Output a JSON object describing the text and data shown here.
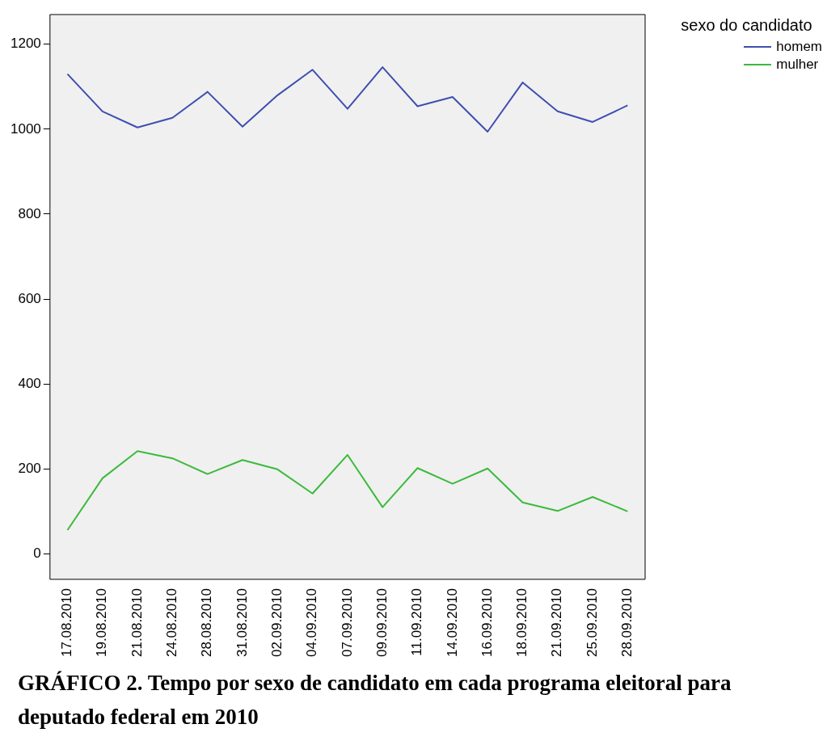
{
  "chart_data": {
    "type": "line",
    "categories": [
      "17.08.2010",
      "19.08.2010",
      "21.08.2010",
      "24.08.2010",
      "28.08.2010",
      "31.08.2010",
      "02.09.2010",
      "04.09.2010",
      "07.09.2010",
      "09.09.2010",
      "11.09.2010",
      "14.09.2010",
      "16.09.2010",
      "18.09.2010",
      "21.09.2010",
      "25.09.2010",
      "28.09.2010"
    ],
    "series": [
      {
        "name": "homem",
        "color": "#3e4fb0",
        "values": [
          1130,
          1042,
          1004,
          1027,
          1088,
          1006,
          1080,
          1140,
          1048,
          1146,
          1054,
          1076,
          994,
          1110,
          1042,
          1017,
          1056
        ]
      },
      {
        "name": "mulher",
        "color": "#3cba3c",
        "values": [
          56,
          178,
          242,
          225,
          188,
          221,
          199,
          142,
          233,
          110,
          202,
          165,
          201,
          121,
          101,
          134,
          100
        ]
      }
    ],
    "ylim": [
      -60,
      1270
    ],
    "yticks": [
      0,
      200,
      400,
      600,
      800,
      1000,
      1200
    ],
    "legend": "top right",
    "legend_title": "sexo do candidato",
    "grid": false,
    "marker": "none",
    "line_style": "solid",
    "annotations": [
      "GRÁFICO 2. Tempo por sexo de candidato em cada programa eleitoral para deputado federal em 2010"
    ]
  }
}
